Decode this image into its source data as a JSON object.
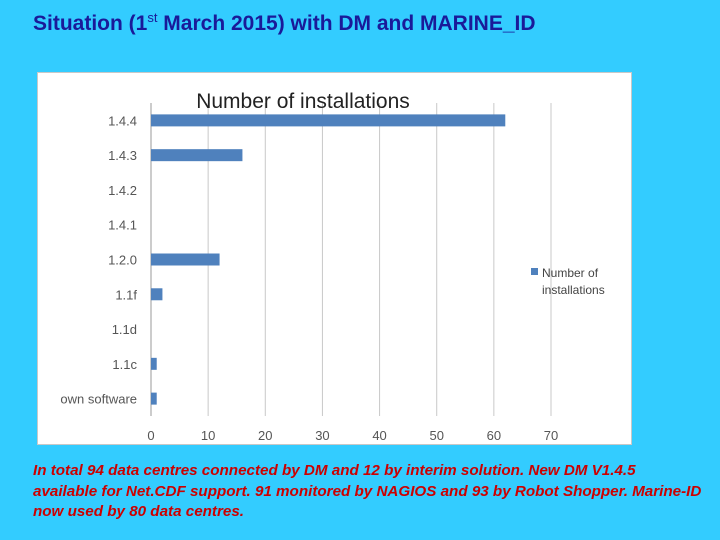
{
  "slide": {
    "title_pre": "Situation (1",
    "title_sup": "st",
    "title_post": " March 2015) with DM and MARINE_ID",
    "caption": "In total 94 data centres connected by DM and 12 by interim solution. New DM V1.4.5 available for Net.CDF support. 91 monitored by NAGIOS and 93 by Robot Shopper. Marine-ID now used by 80 data centres."
  },
  "chart_data": {
    "type": "bar",
    "orientation": "horizontal",
    "title": "Number of installations",
    "categories": [
      "own software",
      "1.1c",
      "1.1d",
      "1.1f",
      "1.2.0",
      "1.4.1",
      "1.4.2",
      "1.4.3",
      "1.4.4"
    ],
    "series": [
      {
        "name": "Number of installations",
        "values": [
          1,
          1,
          0,
          2,
          12,
          0,
          0,
          16,
          62
        ],
        "color": "#4f81bd"
      }
    ],
    "xlim": [
      0,
      70
    ],
    "xticks": [
      "0",
      "10",
      "20",
      "30",
      "40",
      "50",
      "60",
      "70"
    ],
    "grid": true,
    "legend": "right"
  }
}
